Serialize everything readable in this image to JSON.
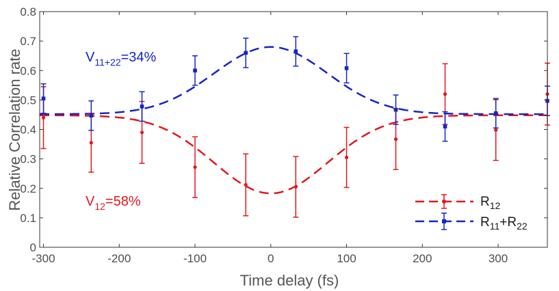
{
  "chart_data": {
    "type": "scatter",
    "xlabel": "Time delay (fs)",
    "ylabel": "Relative Correlation rate",
    "xlim": [
      -305,
      365
    ],
    "ylim": [
      0,
      0.8
    ],
    "x_ticks": [
      -300,
      -200,
      -100,
      0,
      100,
      200,
      300
    ],
    "x_tick_labels": [
      "-300",
      "-200",
      "-100",
      "0",
      "100",
      "200",
      "300"
    ],
    "y_ticks": [
      0,
      0.1,
      0.2,
      0.3,
      0.4,
      0.5,
      0.6,
      0.7,
      0.8
    ],
    "y_tick_labels": [
      "0",
      "0.1",
      "0.2",
      "0.3",
      "0.4",
      "0.5",
      "0.6",
      "0.7",
      "0.8"
    ],
    "grid": false,
    "legend_position": "bottom-right",
    "series": [
      {
        "name": "R₁₂",
        "legend_main": "R",
        "legend_sub": "12",
        "color": "#e3161b",
        "marker": "circle",
        "x": [
          -300,
          -237,
          -170,
          -100,
          -33,
          33,
          100,
          165,
          230,
          297,
          365
        ],
        "y": [
          0.44,
          0.355,
          0.39,
          0.272,
          0.212,
          0.205,
          0.305,
          0.367,
          0.52,
          0.398,
          0.52
        ],
        "err": [
          0.105,
          0.1,
          0.105,
          0.103,
          0.105,
          0.103,
          0.102,
          0.103,
          0.103,
          0.103,
          0.105
        ],
        "fit": {
          "baseline": 0.448,
          "amplitude": -0.265,
          "sigma": 75
        }
      },
      {
        "name": "R₁₁+R₂₂",
        "legend_main1": "R",
        "legend_sub1": "11",
        "legend_plus": "+R",
        "legend_sub2": "22",
        "color": "#1424c8",
        "marker": "square",
        "x": [
          -300,
          -237,
          -170,
          -100,
          -33,
          33,
          100,
          165,
          230,
          297,
          365
        ],
        "y": [
          0.505,
          0.447,
          0.478,
          0.6,
          0.66,
          0.665,
          0.608,
          0.467,
          0.41,
          0.455,
          0.497
        ],
        "err": [
          0.05,
          0.05,
          0.05,
          0.05,
          0.05,
          0.05,
          0.05,
          0.05,
          0.05,
          0.05,
          0.05
        ],
        "fit": {
          "baseline": 0.452,
          "amplitude": 0.228,
          "sigma": 75
        }
      }
    ],
    "annotations": [
      {
        "series": 1,
        "main": "V",
        "sub": "11+22",
        "rest": "=34%"
      },
      {
        "series": 0,
        "main": "V",
        "sub": "12",
        "rest": "=58%"
      }
    ]
  }
}
